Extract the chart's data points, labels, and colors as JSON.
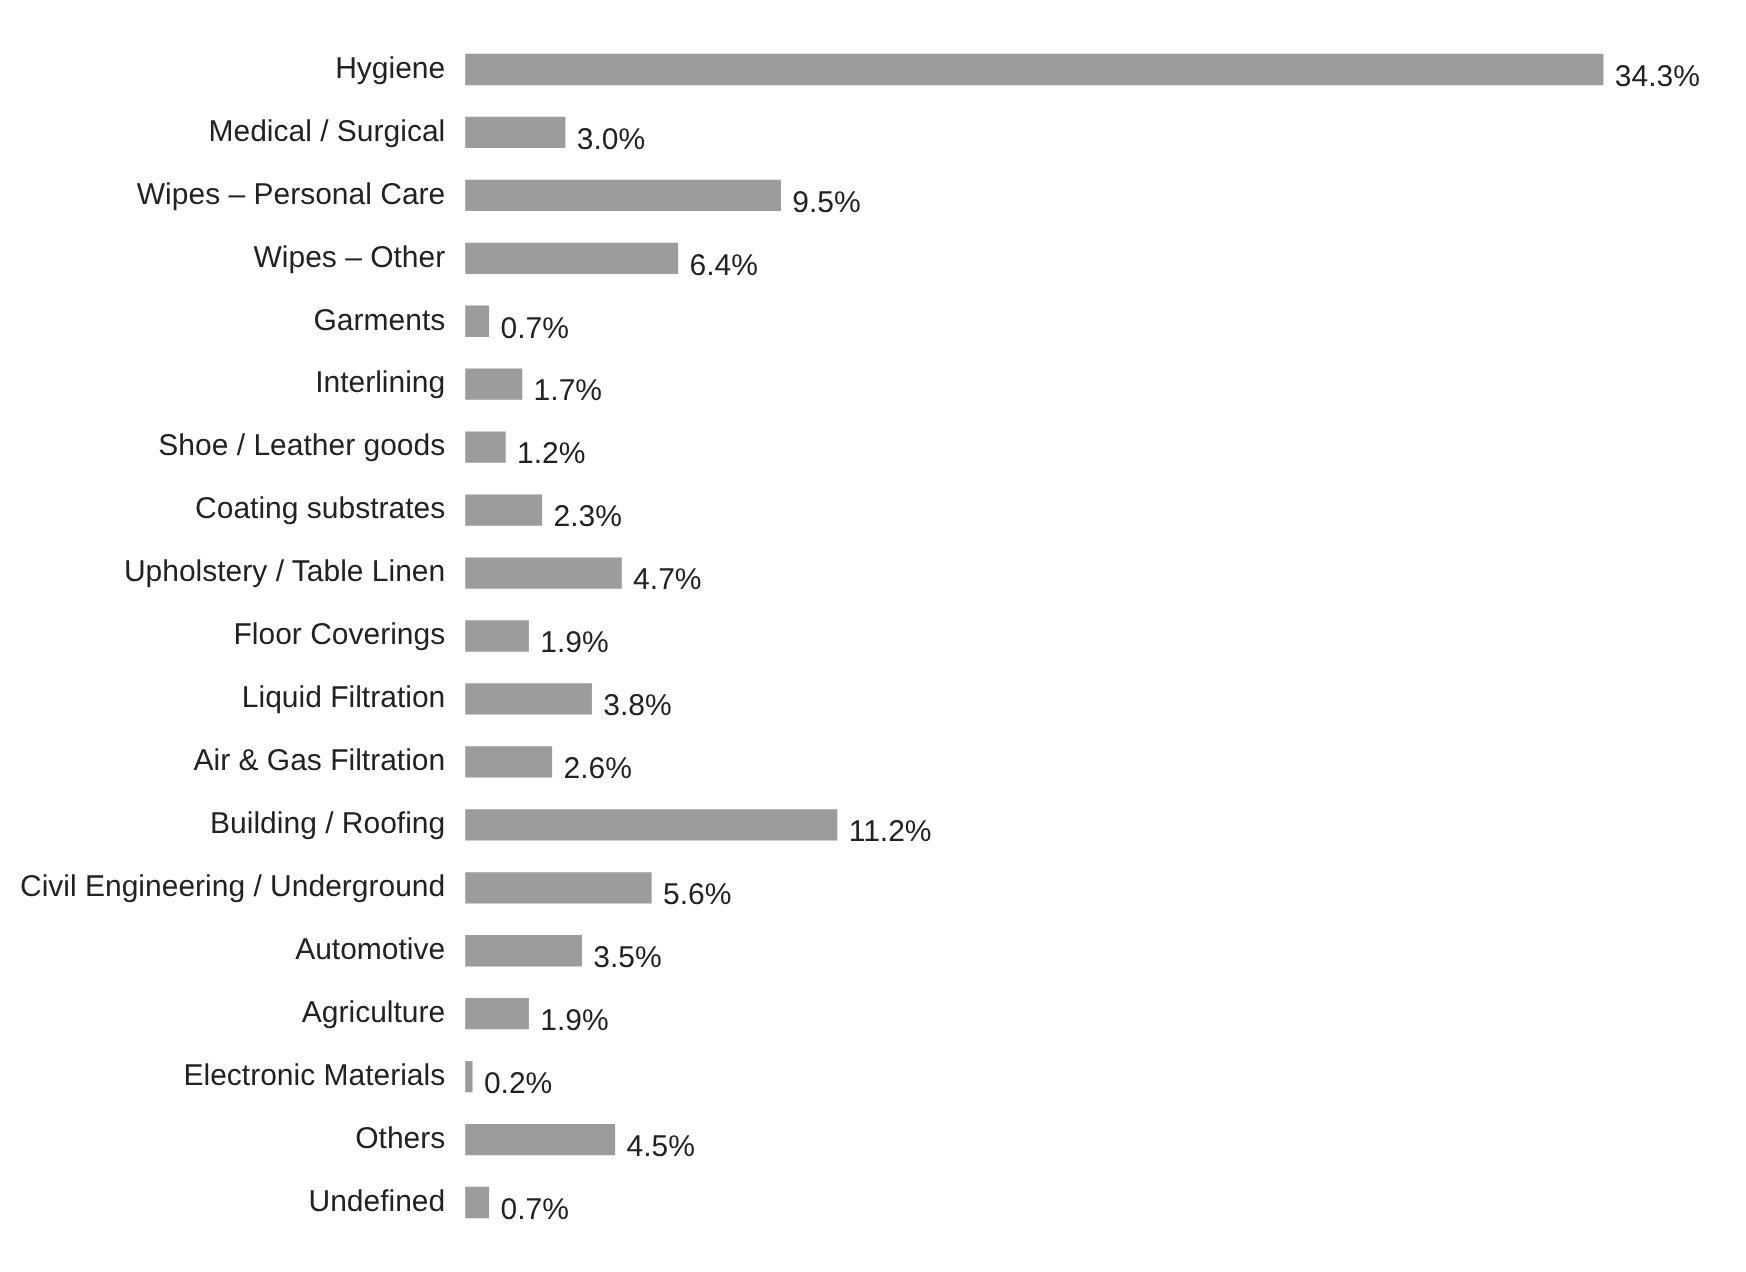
{
  "chart_data": {
    "type": "bar",
    "orientation": "horizontal",
    "categories": [
      "Hygiene",
      "Medical / Surgical",
      "Wipes – Personal Care",
      "Wipes – Other",
      "Garments",
      "Interlining",
      "Shoe / Leather goods",
      "Coating substrates",
      "Upholstery / Table Linen",
      "Floor Coverings",
      "Liquid Filtration",
      "Air & Gas Filtration",
      "Building / Roofing",
      "Civil Engineering / Underground",
      "Automotive",
      "Agriculture",
      "Electronic Materials",
      "Others",
      "Undefined"
    ],
    "values": [
      34.3,
      3.0,
      9.5,
      6.4,
      0.7,
      1.7,
      1.2,
      2.3,
      4.7,
      1.9,
      3.8,
      2.6,
      11.2,
      5.6,
      3.5,
      1.9,
      0.2,
      4.5,
      0.7
    ],
    "value_labels": [
      "34.3%",
      "3.0%",
      "9.5%",
      "6.4%",
      "0.7%",
      "1.7%",
      "1.2%",
      "2.3%",
      "4.7%",
      "1.9%",
      "3.8%",
      "2.6%",
      "11.2%",
      "5.6%",
      "3.5%",
      "1.9%",
      "0.2%",
      "4.5%",
      "0.7%"
    ],
    "color": "#9c9c9c"
  }
}
